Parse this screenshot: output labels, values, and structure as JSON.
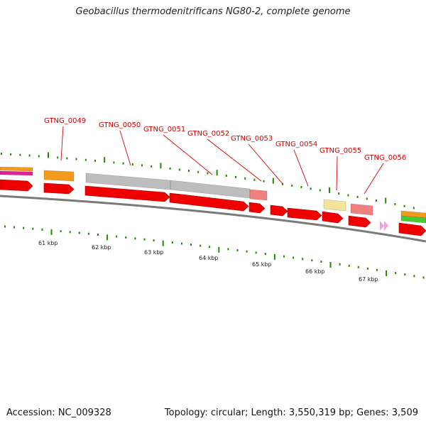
{
  "title": "Geobacillus thermodenitrificans NG80-2, complete genome",
  "footer": {
    "accession": "Accession: NC_009328",
    "summary": "Topology: circular; Length: 3,550,319 bp; Genes: 3,509"
  },
  "kbp_labels": [
    "61 kbp",
    "62 kbp",
    "63 kbp",
    "64 kbp",
    "65 kbp",
    "66 kbp",
    "67 kbp"
  ],
  "gene_labels": [
    "GTNG_0049",
    "GTNG_0050",
    "GTNG_0051",
    "GTNG_0052",
    "GTNG_0053",
    "GTNG_0054",
    "GTNG_0055",
    "GTNG_0056"
  ],
  "colors": {
    "gene": "#ee0000",
    "label": "#d40000",
    "tick": "#228800",
    "backbone": "#7a7a7a",
    "orange": "#f39a1c",
    "grey": "#bdbdbd",
    "pink": "#f08080",
    "yellow": "#f2e49a",
    "green": "#44cc33",
    "magenta": "#e0209a",
    "lightpink": "#ff99dd"
  }
}
